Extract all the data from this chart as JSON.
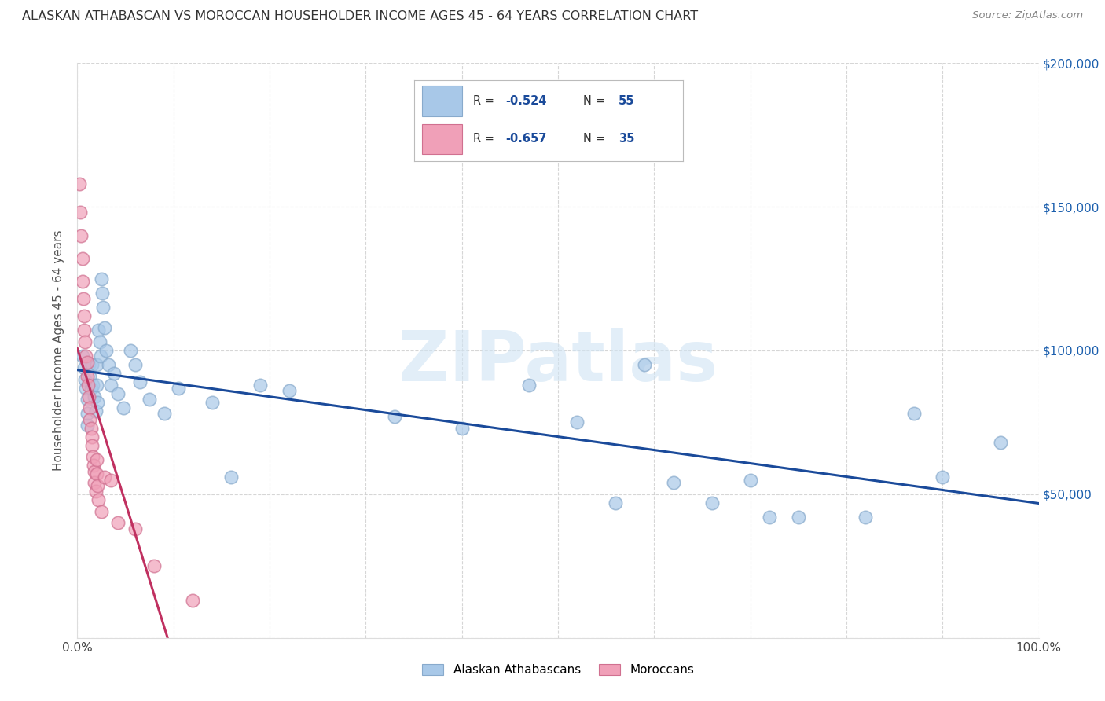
{
  "title": "ALASKAN ATHABASCAN VS MOROCCAN HOUSEHOLDER INCOME AGES 45 - 64 YEARS CORRELATION CHART",
  "source": "Source: ZipAtlas.com",
  "ylabel": "Householder Income Ages 45 - 64 years",
  "xlim": [
    0,
    1.0
  ],
  "ylim": [
    0,
    200000
  ],
  "xticks": [
    0.0,
    0.1,
    0.2,
    0.3,
    0.4,
    0.5,
    0.6,
    0.7,
    0.8,
    0.9,
    1.0
  ],
  "xtick_labels": [
    "0.0%",
    "",
    "",
    "",
    "",
    "",
    "",
    "",
    "",
    "",
    "100.0%"
  ],
  "yticks": [
    0,
    50000,
    100000,
    150000,
    200000
  ],
  "ytick_labels_right": [
    "",
    "$50,000",
    "$100,000",
    "$150,000",
    "$200,000"
  ],
  "blue_R": -0.524,
  "blue_N": 55,
  "pink_R": -0.657,
  "pink_N": 35,
  "background_color": "#ffffff",
  "grid_color": "#cccccc",
  "blue_color": "#a8c8e8",
  "blue_edge_color": "#88aacc",
  "blue_line_color": "#1a4a9a",
  "pink_color": "#f0a0b8",
  "pink_edge_color": "#d07090",
  "pink_line_color": "#c03060",
  "dash_color": "#cccccc",
  "watermark_text": "ZIPatlas",
  "watermark_color": "#d0e4f4",
  "legend_text_color": "#1a4a9a",
  "blue_x": [
    0.005,
    0.007,
    0.008,
    0.009,
    0.01,
    0.01,
    0.01,
    0.012,
    0.013,
    0.014,
    0.015,
    0.016,
    0.018,
    0.019,
    0.02,
    0.02,
    0.021,
    0.022,
    0.023,
    0.024,
    0.025,
    0.026,
    0.027,
    0.028,
    0.03,
    0.032,
    0.035,
    0.038,
    0.042,
    0.048,
    0.055,
    0.06,
    0.065,
    0.075,
    0.09,
    0.105,
    0.14,
    0.16,
    0.19,
    0.22,
    0.33,
    0.4,
    0.47,
    0.52,
    0.56,
    0.59,
    0.62,
    0.66,
    0.7,
    0.72,
    0.75,
    0.82,
    0.87,
    0.9,
    0.96
  ],
  "blue_y": [
    98000,
    94000,
    90000,
    87000,
    83000,
    78000,
    74000,
    95000,
    91000,
    87000,
    95000,
    88000,
    84000,
    79000,
    95000,
    88000,
    82000,
    107000,
    103000,
    98000,
    125000,
    120000,
    115000,
    108000,
    100000,
    95000,
    88000,
    92000,
    85000,
    80000,
    100000,
    95000,
    89000,
    83000,
    78000,
    87000,
    82000,
    56000,
    88000,
    86000,
    77000,
    73000,
    88000,
    75000,
    47000,
    95000,
    54000,
    47000,
    55000,
    42000,
    42000,
    42000,
    78000,
    56000,
    68000
  ],
  "pink_x": [
    0.002,
    0.003,
    0.004,
    0.005,
    0.005,
    0.006,
    0.007,
    0.007,
    0.008,
    0.009,
    0.01,
    0.01,
    0.011,
    0.012,
    0.013,
    0.013,
    0.014,
    0.015,
    0.015,
    0.016,
    0.017,
    0.018,
    0.018,
    0.019,
    0.02,
    0.02,
    0.021,
    0.022,
    0.025,
    0.028,
    0.035,
    0.042,
    0.06,
    0.08,
    0.12
  ],
  "pink_y": [
    158000,
    148000,
    140000,
    132000,
    124000,
    118000,
    112000,
    107000,
    103000,
    98000,
    96000,
    91000,
    88000,
    84000,
    80000,
    76000,
    73000,
    70000,
    67000,
    63000,
    60000,
    58000,
    54000,
    51000,
    62000,
    57000,
    53000,
    48000,
    44000,
    56000,
    55000,
    40000,
    38000,
    25000,
    13000
  ]
}
